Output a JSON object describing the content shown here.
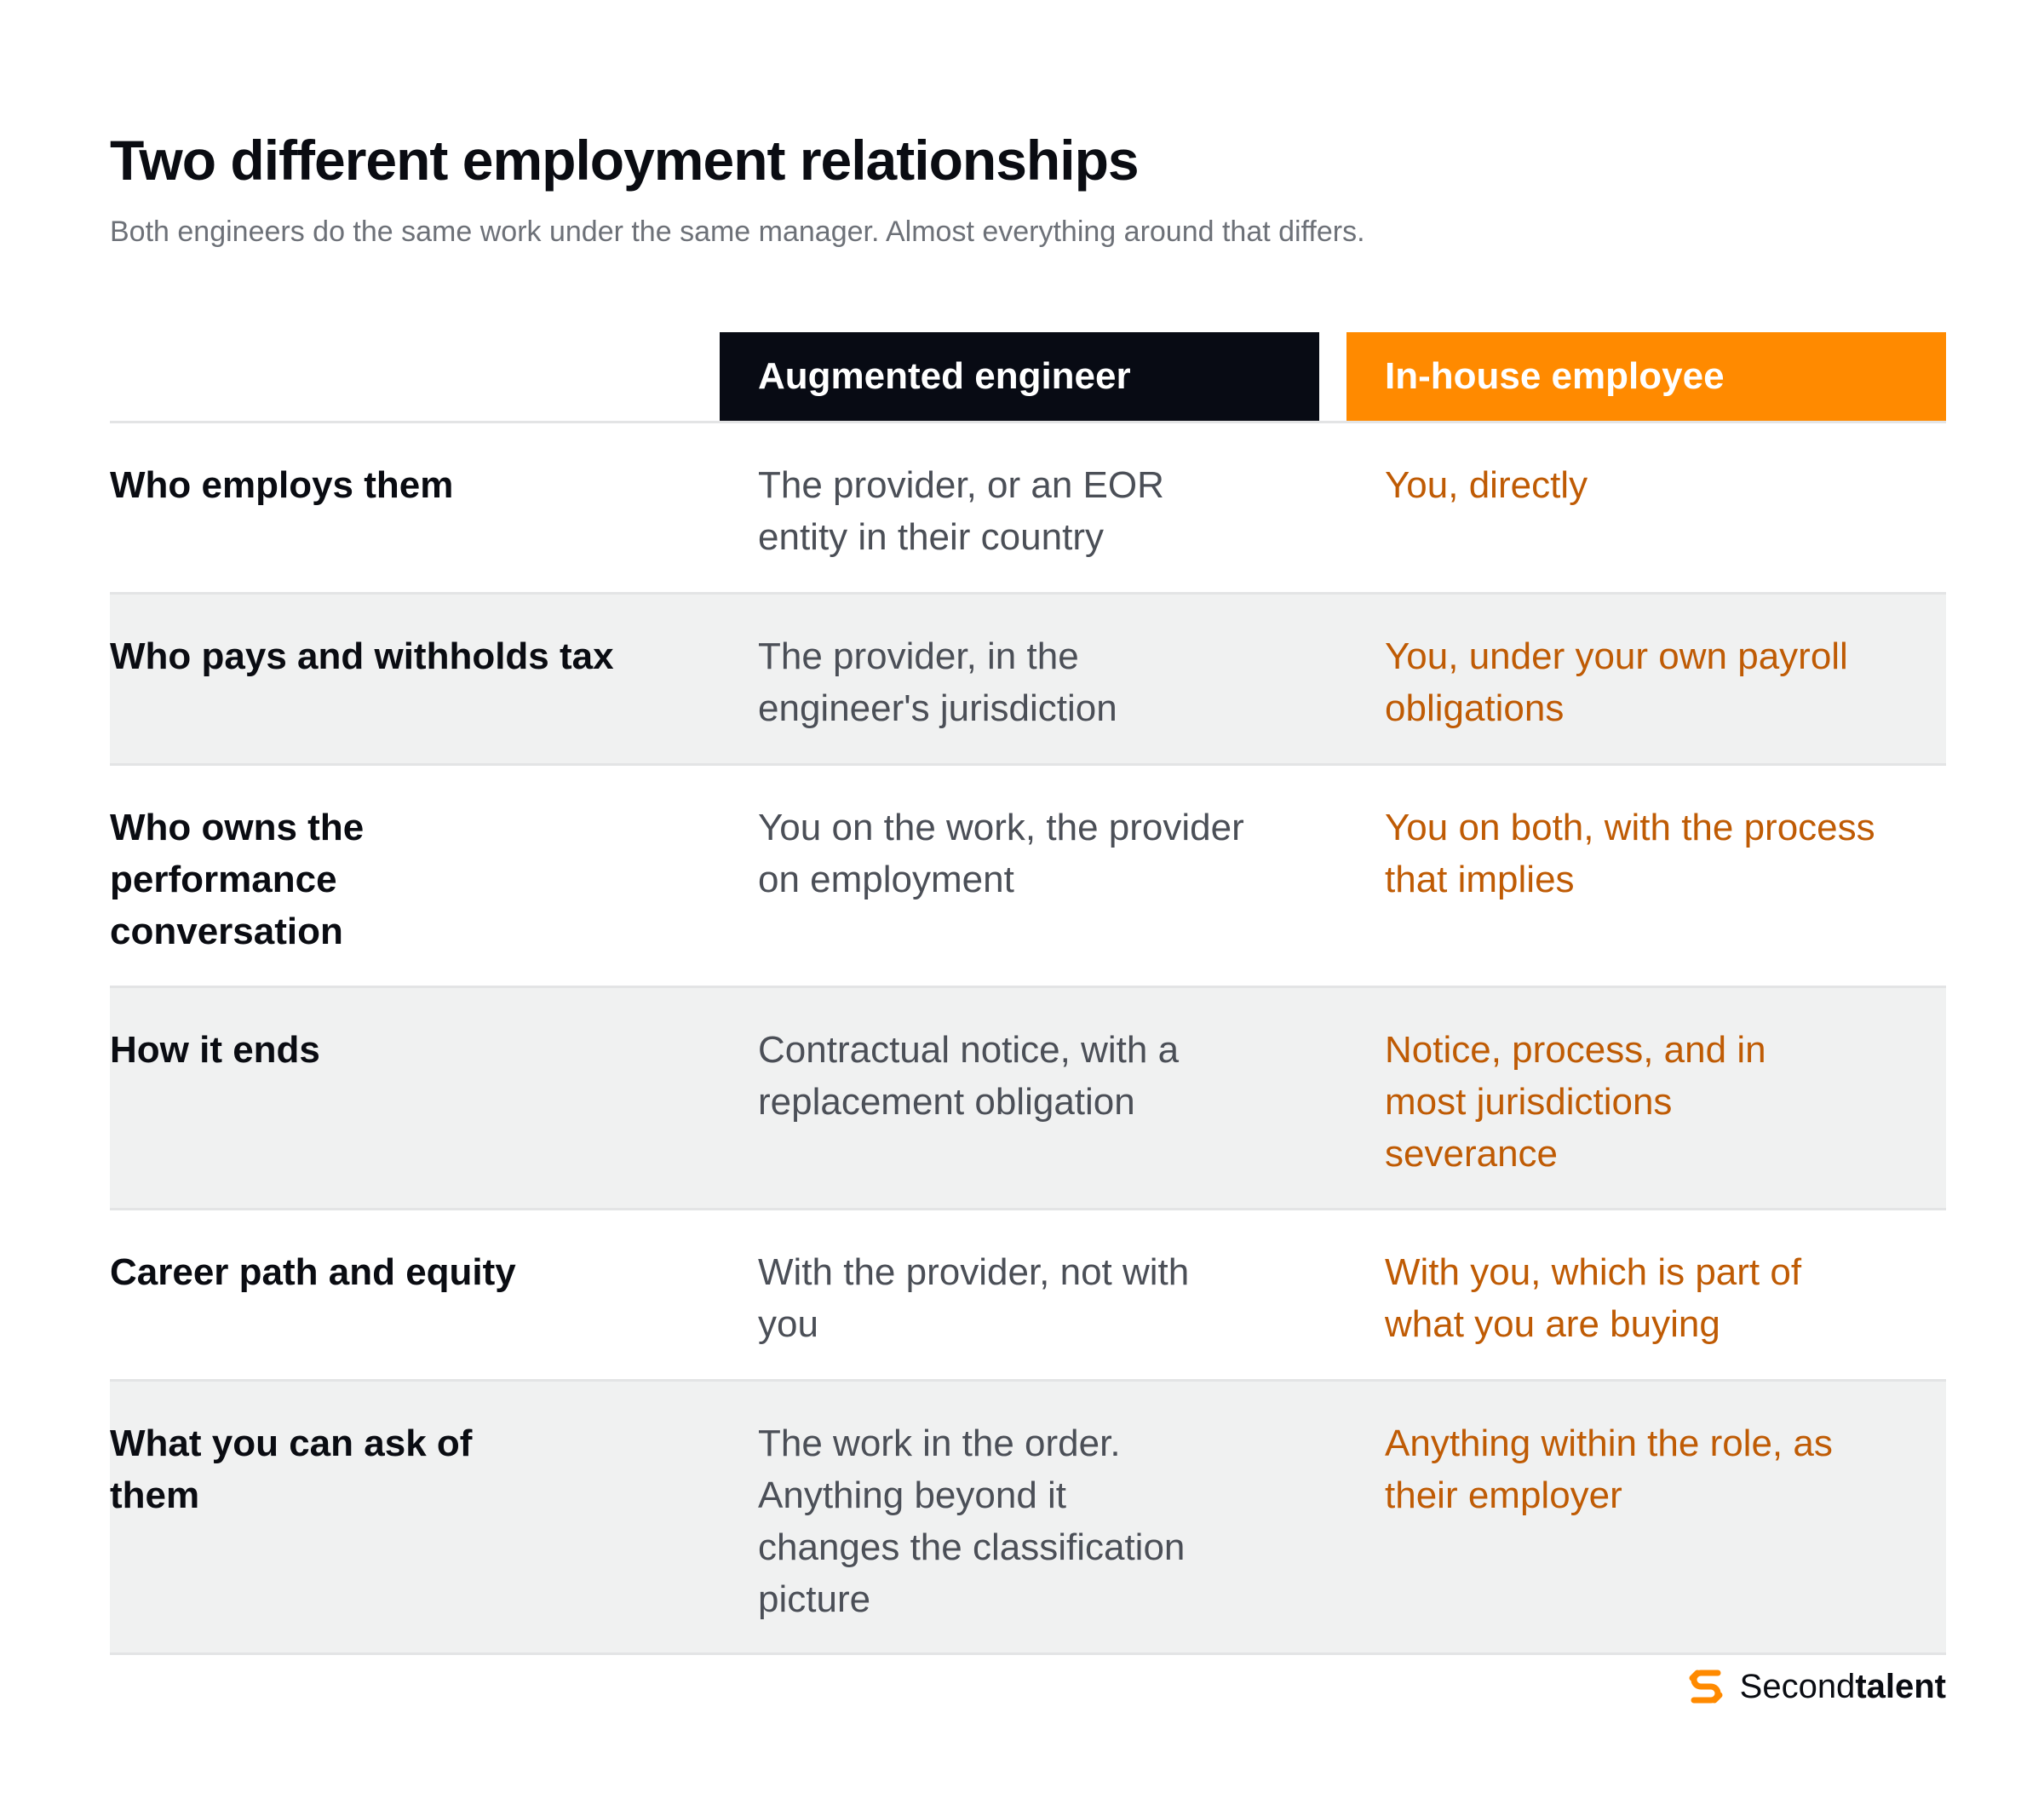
{
  "header": {
    "title": "Two different employment relationships",
    "subtitle": "Both engineers do the same work under the same manager. Almost everything around that differs."
  },
  "table": {
    "columns": [
      "",
      "Augmented engineer",
      "In-house employee"
    ],
    "rows": [
      {
        "label": "Who employs them",
        "augmented": "The provider, or an EOR entity in their country",
        "inhouse": "You, directly"
      },
      {
        "label": "Who pays and withholds tax",
        "augmented": "The provider, in the engineer's jurisdiction",
        "inhouse": "You, under your own payroll obligations"
      },
      {
        "label": "Who owns the performance conversation",
        "augmented": "You on the work, the provider on employment",
        "inhouse": "You on both, with the process that implies"
      },
      {
        "label": "How it ends",
        "augmented": "Contractual notice, with a replacement obligation",
        "inhouse": "Notice, process, and in most jurisdictions severance"
      },
      {
        "label": "Career path and equity",
        "augmented": "With the provider, not with you",
        "inhouse": "With you, which is part of what you are buying"
      },
      {
        "label": "What you can ask of them",
        "augmented": "The work in the order. Anything beyond it changes the classification picture",
        "inhouse": "Anything within the role, as their employer"
      }
    ]
  },
  "brand": {
    "name_light": "Second",
    "name_bold": "talent",
    "icon": "secondtalent-logo-icon"
  },
  "colors": {
    "augmented_header_bg": "#080b14",
    "inhouse_header_bg": "#ff8a00",
    "inhouse_text": "#bf5b04",
    "row_shade": "#f0f1f1"
  }
}
